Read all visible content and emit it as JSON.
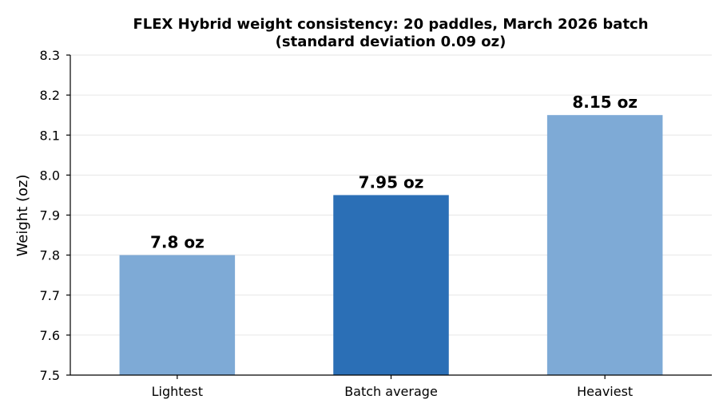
{
  "chart_data": {
    "type": "bar",
    "title": "FLEX Hybrid weight consistency: 20 paddles, March 2026 batch",
    "subtitle": "(standard deviation 0.09 oz)",
    "xlabel": "",
    "ylabel": "Weight (oz)",
    "ylim": [
      7.5,
      8.3
    ],
    "yticks": [
      "7.5",
      "7.6",
      "7.7",
      "7.8",
      "7.9",
      "8.0",
      "8.1",
      "8.2",
      "8.3"
    ],
    "categories": [
      "Lightest",
      "Batch average",
      "Heaviest"
    ],
    "values": [
      7.8,
      7.95,
      8.15
    ],
    "data_labels": [
      "7.8 oz",
      "7.95 oz",
      "8.15 oz"
    ],
    "bar_colors": [
      "#7eaad6",
      "#2b6fb6",
      "#7eaad6"
    ],
    "grid": "horizontal",
    "legend": "none"
  }
}
